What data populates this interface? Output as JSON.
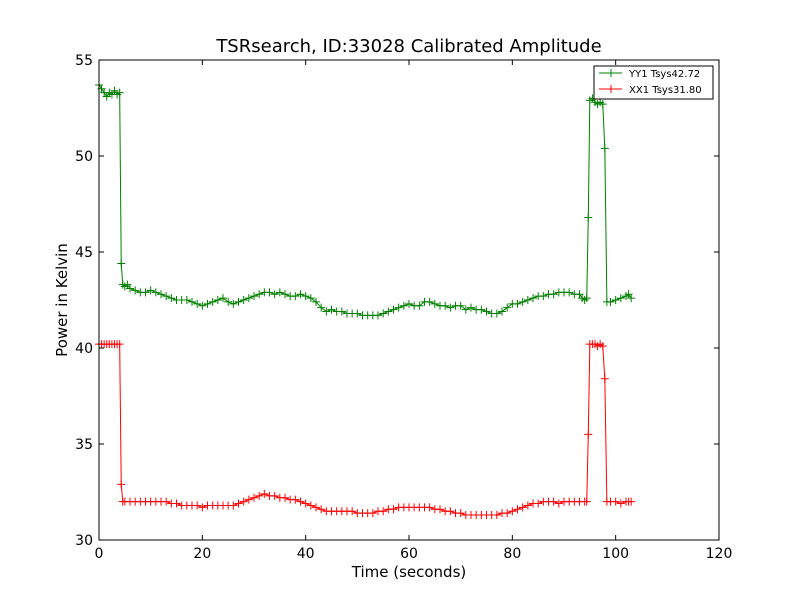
{
  "chart_data": {
    "type": "line",
    "title": "TSRsearch, ID:33028 Calibrated Amplitude",
    "xlabel": "Time (seconds)",
    "ylabel": "Power in Kelvin",
    "xlim": [
      0,
      120
    ],
    "ylim": [
      30,
      55
    ],
    "xticks": [
      0,
      20,
      40,
      60,
      80,
      100,
      120
    ],
    "yticks": [
      30,
      35,
      40,
      45,
      50,
      55
    ],
    "grid": false,
    "legend_position": "top-right",
    "marker": "+",
    "series": [
      {
        "name": "YY1 Tsys42.72",
        "color": "#008000",
        "points": [
          [
            0.0,
            53.7
          ],
          [
            0.5,
            53.5
          ],
          [
            1.0,
            53.3
          ],
          [
            1.5,
            53.1
          ],
          [
            2.0,
            53.3
          ],
          [
            2.5,
            53.2
          ],
          [
            3.0,
            53.4
          ],
          [
            3.5,
            53.2
          ],
          [
            4.0,
            53.3
          ],
          [
            4.3,
            44.4
          ],
          [
            4.6,
            43.3
          ],
          [
            5.0,
            43.2
          ],
          [
            5.5,
            43.3
          ],
          [
            6.0,
            43.1
          ],
          [
            7.0,
            43.0
          ],
          [
            8.0,
            42.9
          ],
          [
            9.0,
            42.9
          ],
          [
            10.0,
            43.0
          ],
          [
            11.0,
            42.9
          ],
          [
            12.0,
            42.8
          ],
          [
            13.0,
            42.7
          ],
          [
            14.0,
            42.6
          ],
          [
            15.0,
            42.5
          ],
          [
            16.0,
            42.5
          ],
          [
            17.0,
            42.5
          ],
          [
            18.0,
            42.4
          ],
          [
            19.0,
            42.3
          ],
          [
            20.0,
            42.2
          ],
          [
            21.0,
            42.3
          ],
          [
            22.0,
            42.4
          ],
          [
            23.0,
            42.5
          ],
          [
            24.0,
            42.6
          ],
          [
            25.0,
            42.4
          ],
          [
            26.0,
            42.3
          ],
          [
            27.0,
            42.4
          ],
          [
            28.0,
            42.5
          ],
          [
            29.0,
            42.6
          ],
          [
            30.0,
            42.7
          ],
          [
            31.0,
            42.8
          ],
          [
            32.0,
            42.9
          ],
          [
            33.0,
            42.9
          ],
          [
            34.0,
            42.8
          ],
          [
            35.0,
            42.9
          ],
          [
            36.0,
            42.8
          ],
          [
            37.0,
            42.7
          ],
          [
            38.0,
            42.7
          ],
          [
            39.0,
            42.8
          ],
          [
            40.0,
            42.7
          ],
          [
            41.0,
            42.6
          ],
          [
            42.0,
            42.4
          ],
          [
            43.0,
            42.1
          ],
          [
            44.0,
            41.9
          ],
          [
            45.0,
            42.0
          ],
          [
            46.0,
            41.9
          ],
          [
            47.0,
            41.9
          ],
          [
            48.0,
            41.8
          ],
          [
            49.0,
            41.8
          ],
          [
            50.0,
            41.8
          ],
          [
            51.0,
            41.7
          ],
          [
            52.0,
            41.7
          ],
          [
            53.0,
            41.7
          ],
          [
            54.0,
            41.7
          ],
          [
            55.0,
            41.8
          ],
          [
            56.0,
            41.9
          ],
          [
            57.0,
            42.0
          ],
          [
            58.0,
            42.1
          ],
          [
            59.0,
            42.2
          ],
          [
            60.0,
            42.3
          ],
          [
            61.0,
            42.2
          ],
          [
            62.0,
            42.2
          ],
          [
            63.0,
            42.4
          ],
          [
            64.0,
            42.4
          ],
          [
            65.0,
            42.3
          ],
          [
            66.0,
            42.2
          ],
          [
            67.0,
            42.2
          ],
          [
            68.0,
            42.1
          ],
          [
            69.0,
            42.2
          ],
          [
            70.0,
            42.2
          ],
          [
            71.0,
            42.0
          ],
          [
            72.0,
            42.1
          ],
          [
            73.0,
            42.0
          ],
          [
            74.0,
            42.0
          ],
          [
            75.0,
            41.9
          ],
          [
            76.0,
            41.8
          ],
          [
            77.0,
            41.8
          ],
          [
            78.0,
            41.9
          ],
          [
            79.0,
            42.1
          ],
          [
            80.0,
            42.3
          ],
          [
            81.0,
            42.3
          ],
          [
            82.0,
            42.4
          ],
          [
            83.0,
            42.5
          ],
          [
            84.0,
            42.6
          ],
          [
            85.0,
            42.7
          ],
          [
            86.0,
            42.7
          ],
          [
            87.0,
            42.8
          ],
          [
            88.0,
            42.8
          ],
          [
            89.0,
            42.9
          ],
          [
            90.0,
            42.9
          ],
          [
            91.0,
            42.9
          ],
          [
            92.0,
            42.8
          ],
          [
            93.0,
            42.8
          ],
          [
            93.5,
            42.6
          ],
          [
            94.0,
            42.5
          ],
          [
            94.4,
            42.6
          ],
          [
            94.7,
            46.8
          ],
          [
            95.0,
            52.9
          ],
          [
            95.5,
            53.0
          ],
          [
            96.0,
            52.8
          ],
          [
            96.5,
            52.7
          ],
          [
            97.0,
            52.8
          ],
          [
            97.5,
            52.7
          ],
          [
            97.9,
            50.4
          ],
          [
            98.3,
            42.4
          ],
          [
            99.0,
            42.4
          ],
          [
            100.0,
            42.5
          ],
          [
            101.0,
            42.6
          ],
          [
            102.0,
            42.7
          ],
          [
            102.5,
            42.8
          ],
          [
            103.0,
            42.6
          ]
        ]
      },
      {
        "name": "XX1 Tsys31.80",
        "color": "#ff0000",
        "points": [
          [
            0.0,
            40.2
          ],
          [
            0.5,
            40.2
          ],
          [
            1.0,
            40.2
          ],
          [
            1.5,
            40.2
          ],
          [
            2.0,
            40.2
          ],
          [
            2.5,
            40.2
          ],
          [
            3.0,
            40.2
          ],
          [
            3.5,
            40.2
          ],
          [
            4.0,
            40.2
          ],
          [
            4.3,
            32.9
          ],
          [
            4.6,
            32.0
          ],
          [
            5.0,
            32.0
          ],
          [
            6.0,
            32.0
          ],
          [
            7.0,
            32.0
          ],
          [
            8.0,
            32.0
          ],
          [
            9.0,
            32.0
          ],
          [
            10.0,
            32.0
          ],
          [
            11.0,
            32.0
          ],
          [
            12.0,
            32.0
          ],
          [
            13.0,
            32.0
          ],
          [
            14.0,
            31.9
          ],
          [
            15.0,
            31.9
          ],
          [
            16.0,
            31.8
          ],
          [
            17.0,
            31.8
          ],
          [
            18.0,
            31.8
          ],
          [
            19.0,
            31.8
          ],
          [
            20.0,
            31.7
          ],
          [
            21.0,
            31.8
          ],
          [
            22.0,
            31.8
          ],
          [
            23.0,
            31.8
          ],
          [
            24.0,
            31.8
          ],
          [
            25.0,
            31.8
          ],
          [
            26.0,
            31.8
          ],
          [
            27.0,
            31.9
          ],
          [
            28.0,
            32.0
          ],
          [
            29.0,
            32.1
          ],
          [
            30.0,
            32.2
          ],
          [
            31.0,
            32.3
          ],
          [
            32.0,
            32.4
          ],
          [
            33.0,
            32.3
          ],
          [
            34.0,
            32.3
          ],
          [
            35.0,
            32.2
          ],
          [
            36.0,
            32.2
          ],
          [
            37.0,
            32.1
          ],
          [
            38.0,
            32.1
          ],
          [
            39.0,
            32.0
          ],
          [
            40.0,
            31.9
          ],
          [
            41.0,
            31.8
          ],
          [
            42.0,
            31.7
          ],
          [
            43.0,
            31.6
          ],
          [
            44.0,
            31.5
          ],
          [
            45.0,
            31.5
          ],
          [
            46.0,
            31.5
          ],
          [
            47.0,
            31.5
          ],
          [
            48.0,
            31.5
          ],
          [
            49.0,
            31.5
          ],
          [
            50.0,
            31.4
          ],
          [
            51.0,
            31.4
          ],
          [
            52.0,
            31.4
          ],
          [
            53.0,
            31.4
          ],
          [
            54.0,
            31.5
          ],
          [
            55.0,
            31.5
          ],
          [
            56.0,
            31.6
          ],
          [
            57.0,
            31.6
          ],
          [
            58.0,
            31.7
          ],
          [
            59.0,
            31.7
          ],
          [
            60.0,
            31.7
          ],
          [
            61.0,
            31.7
          ],
          [
            62.0,
            31.7
          ],
          [
            63.0,
            31.7
          ],
          [
            64.0,
            31.7
          ],
          [
            65.0,
            31.6
          ],
          [
            66.0,
            31.6
          ],
          [
            67.0,
            31.5
          ],
          [
            68.0,
            31.5
          ],
          [
            69.0,
            31.4
          ],
          [
            70.0,
            31.4
          ],
          [
            71.0,
            31.3
          ],
          [
            72.0,
            31.3
          ],
          [
            73.0,
            31.3
          ],
          [
            74.0,
            31.3
          ],
          [
            75.0,
            31.3
          ],
          [
            76.0,
            31.3
          ],
          [
            77.0,
            31.3
          ],
          [
            78.0,
            31.4
          ],
          [
            79.0,
            31.4
          ],
          [
            80.0,
            31.5
          ],
          [
            81.0,
            31.6
          ],
          [
            82.0,
            31.7
          ],
          [
            83.0,
            31.8
          ],
          [
            84.0,
            31.9
          ],
          [
            85.0,
            31.9
          ],
          [
            86.0,
            32.0
          ],
          [
            87.0,
            32.0
          ],
          [
            88.0,
            32.0
          ],
          [
            89.0,
            31.9
          ],
          [
            90.0,
            32.0
          ],
          [
            91.0,
            32.0
          ],
          [
            92.0,
            32.0
          ],
          [
            93.0,
            32.0
          ],
          [
            94.0,
            32.0
          ],
          [
            94.4,
            32.0
          ],
          [
            94.7,
            35.5
          ],
          [
            95.0,
            40.2
          ],
          [
            95.5,
            40.2
          ],
          [
            96.0,
            40.2
          ],
          [
            96.5,
            40.1
          ],
          [
            97.0,
            40.2
          ],
          [
            97.5,
            40.1
          ],
          [
            97.9,
            38.4
          ],
          [
            98.3,
            32.0
          ],
          [
            99.0,
            32.0
          ],
          [
            100.0,
            32.0
          ],
          [
            101.0,
            31.9
          ],
          [
            102.0,
            32.0
          ],
          [
            102.5,
            32.0
          ],
          [
            103.0,
            32.0
          ]
        ]
      }
    ]
  }
}
